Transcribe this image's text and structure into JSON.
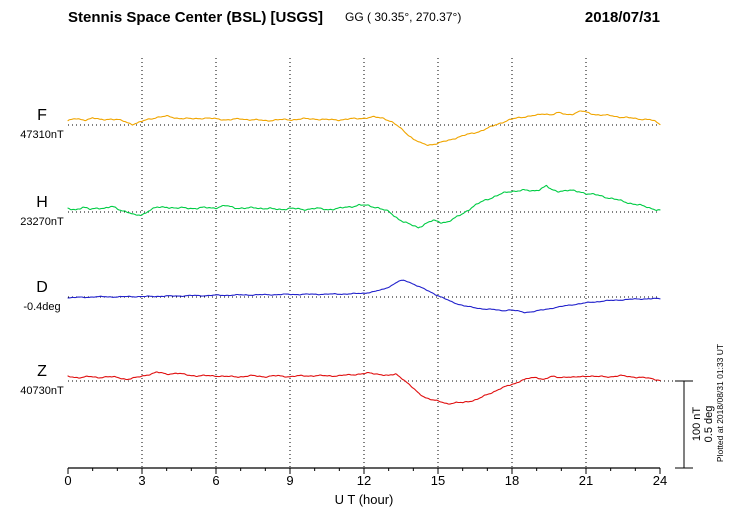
{
  "header": {
    "title": "Stennis Space Center (BSL)  [USGS]",
    "coordinates": "GG ( 30.35°, 270.37°)",
    "date": "2018/07/31"
  },
  "footer": {
    "xaxis_label": "U T (hour)"
  },
  "scale_bar": {
    "nt": "100 nT",
    "deg": "0.5 deg"
  },
  "plotted_note": "Plotted at 2018/08/31 01:33 UT",
  "chart_data": {
    "type": "line",
    "title": "Stennis Space Center (BSL) [USGS] magnetogram",
    "xlabel": "U T (hour)",
    "x_range": [
      0,
      24
    ],
    "x_ticks": [
      0,
      3,
      6,
      9,
      12,
      15,
      18,
      21,
      24
    ],
    "x_minor_step": 1,
    "grid": "dotted",
    "scale": {
      "nT_per_div": 100,
      "deg_per_div": 0.5
    },
    "series": [
      {
        "name": "F",
        "unit": "nT",
        "baseline": 47310,
        "baseline_label": "47310nT",
        "color": "#f0a500",
        "offsets": [
          [
            0,
            5
          ],
          [
            0.3,
            7
          ],
          [
            0.7,
            6
          ],
          [
            1,
            8
          ],
          [
            1.3,
            6
          ],
          [
            1.7,
            7
          ],
          [
            2,
            6
          ],
          [
            2.3,
            4
          ],
          [
            2.6,
            1
          ],
          [
            2.9,
            3
          ],
          [
            3.2,
            6
          ],
          [
            3.6,
            9
          ],
          [
            4,
            10
          ],
          [
            4.4,
            8
          ],
          [
            5,
            7
          ],
          [
            5.5,
            8
          ],
          [
            6,
            7
          ],
          [
            6.5,
            6
          ],
          [
            7,
            7
          ],
          [
            7.5,
            6
          ],
          [
            8,
            5
          ],
          [
            8.5,
            6
          ],
          [
            9,
            6
          ],
          [
            9.5,
            7
          ],
          [
            10,
            7
          ],
          [
            10.5,
            6
          ],
          [
            11,
            6
          ],
          [
            11.5,
            7
          ],
          [
            12,
            8
          ],
          [
            12.4,
            9
          ],
          [
            12.8,
            8
          ],
          [
            13.1,
            4
          ],
          [
            13.4,
            -2
          ],
          [
            13.7,
            -9
          ],
          [
            14,
            -16
          ],
          [
            14.3,
            -21
          ],
          [
            14.6,
            -23
          ],
          [
            15,
            -21
          ],
          [
            15.4,
            -18
          ],
          [
            15.8,
            -14
          ],
          [
            16.2,
            -11
          ],
          [
            16.6,
            -8
          ],
          [
            17,
            -4
          ],
          [
            17.4,
            1
          ],
          [
            17.8,
            5
          ],
          [
            18.2,
            8
          ],
          [
            18.6,
            10
          ],
          [
            19,
            11
          ],
          [
            19.3,
            13
          ],
          [
            19.6,
            12
          ],
          [
            19.9,
            14
          ],
          [
            20.2,
            12
          ],
          [
            20.5,
            13
          ],
          [
            20.8,
            16
          ],
          [
            21.1,
            14
          ],
          [
            21.4,
            12
          ],
          [
            21.7,
            11
          ],
          [
            22,
            11
          ],
          [
            22.4,
            9
          ],
          [
            22.8,
            8
          ],
          [
            23.2,
            7
          ],
          [
            23.6,
            6
          ],
          [
            23.8,
            4
          ],
          [
            24,
            1
          ]
        ]
      },
      {
        "name": "H",
        "unit": "nT",
        "baseline": 23270,
        "baseline_label": "23270nT",
        "color": "#00cc44",
        "offsets": [
          [
            0,
            4
          ],
          [
            0.3,
            3
          ],
          [
            0.6,
            5
          ],
          [
            0.9,
            3
          ],
          [
            1.2,
            5
          ],
          [
            1.5,
            4
          ],
          [
            1.8,
            6
          ],
          [
            2.1,
            3
          ],
          [
            2.4,
            0
          ],
          [
            2.7,
            -4
          ],
          [
            3,
            -3
          ],
          [
            3.3,
            2
          ],
          [
            3.6,
            5
          ],
          [
            4,
            6
          ],
          [
            4.4,
            4
          ],
          [
            4.8,
            5
          ],
          [
            5.2,
            4
          ],
          [
            5.6,
            5
          ],
          [
            6,
            5
          ],
          [
            6.4,
            7
          ],
          [
            6.8,
            5
          ],
          [
            7.2,
            4
          ],
          [
            7.6,
            5
          ],
          [
            8,
            4
          ],
          [
            8.5,
            3
          ],
          [
            9,
            4
          ],
          [
            9.5,
            3
          ],
          [
            10,
            4
          ],
          [
            10.5,
            3
          ],
          [
            11,
            4
          ],
          [
            11.4,
            6
          ],
          [
            11.8,
            8
          ],
          [
            12.2,
            7
          ],
          [
            12.6,
            5
          ],
          [
            13,
            0
          ],
          [
            13.3,
            -6
          ],
          [
            13.6,
            -11
          ],
          [
            13.9,
            -15
          ],
          [
            14.2,
            -18
          ],
          [
            14.5,
            -13
          ],
          [
            14.8,
            -10
          ],
          [
            15.1,
            -12
          ],
          [
            15.4,
            -11
          ],
          [
            15.7,
            -7
          ],
          [
            16,
            -2
          ],
          [
            16.4,
            6
          ],
          [
            16.8,
            12
          ],
          [
            17.2,
            17
          ],
          [
            17.6,
            21
          ],
          [
            18,
            24
          ],
          [
            18.4,
            25
          ],
          [
            18.8,
            24
          ],
          [
            19.1,
            26
          ],
          [
            19.4,
            30
          ],
          [
            19.6,
            25
          ],
          [
            19.9,
            24
          ],
          [
            20.2,
            25
          ],
          [
            20.5,
            24
          ],
          [
            20.8,
            23
          ],
          [
            21.1,
            21
          ],
          [
            21.5,
            19
          ],
          [
            22,
            16
          ],
          [
            22.5,
            12
          ],
          [
            23,
            9
          ],
          [
            23.4,
            6
          ],
          [
            23.7,
            4
          ],
          [
            24,
            2
          ]
        ]
      },
      {
        "name": "D",
        "unit": "deg",
        "baseline": -0.4,
        "baseline_label": "-0.4deg",
        "color": "#2222cc",
        "offsets": [
          [
            0,
            -0.005
          ],
          [
            0.5,
            -0.002
          ],
          [
            1,
            0
          ],
          [
            1.5,
            0.002
          ],
          [
            2,
            0
          ],
          [
            2.5,
            0.003
          ],
          [
            3,
            0.002
          ],
          [
            3.5,
            0.004
          ],
          [
            4,
            0.005
          ],
          [
            4.5,
            0.006
          ],
          [
            5,
            0.008
          ],
          [
            5.5,
            0.008
          ],
          [
            6,
            0.01
          ],
          [
            6.5,
            0.01
          ],
          [
            7,
            0.012
          ],
          [
            7.5,
            0.012
          ],
          [
            8,
            0.013
          ],
          [
            8.5,
            0.014
          ],
          [
            9,
            0.015
          ],
          [
            9.5,
            0.015
          ],
          [
            10,
            0.016
          ],
          [
            10.5,
            0.016
          ],
          [
            11,
            0.017
          ],
          [
            11.5,
            0.018
          ],
          [
            12,
            0.022
          ],
          [
            12.4,
            0.03
          ],
          [
            12.8,
            0.045
          ],
          [
            13.1,
            0.065
          ],
          [
            13.4,
            0.09
          ],
          [
            13.6,
            0.095
          ],
          [
            13.8,
            0.088
          ],
          [
            14,
            0.075
          ],
          [
            14.3,
            0.055
          ],
          [
            14.6,
            0.035
          ],
          [
            14.9,
            0.015
          ],
          [
            15.2,
            -0.005
          ],
          [
            15.5,
            -0.025
          ],
          [
            15.8,
            -0.04
          ],
          [
            16.1,
            -0.052
          ],
          [
            16.4,
            -0.06
          ],
          [
            16.7,
            -0.066
          ],
          [
            17,
            -0.07
          ],
          [
            17.3,
            -0.073
          ],
          [
            17.6,
            -0.078
          ],
          [
            17.9,
            -0.074
          ],
          [
            18.2,
            -0.08
          ],
          [
            18.5,
            -0.088
          ],
          [
            18.8,
            -0.085
          ],
          [
            19.1,
            -0.078
          ],
          [
            19.4,
            -0.07
          ],
          [
            19.7,
            -0.062
          ],
          [
            20,
            -0.055
          ],
          [
            20.4,
            -0.045
          ],
          [
            20.8,
            -0.038
          ],
          [
            21.2,
            -0.03
          ],
          [
            21.6,
            -0.025
          ],
          [
            22,
            -0.02
          ],
          [
            22.5,
            -0.016
          ],
          [
            23,
            -0.012
          ],
          [
            23.5,
            -0.01
          ],
          [
            24,
            -0.01
          ]
        ]
      },
      {
        "name": "Z",
        "unit": "nT",
        "baseline": 40730,
        "baseline_label": "40730nT",
        "color": "#e01010",
        "offsets": [
          [
            0,
            5
          ],
          [
            0.4,
            4
          ],
          [
            0.8,
            5
          ],
          [
            1.2,
            4
          ],
          [
            1.6,
            5
          ],
          [
            2,
            4
          ],
          [
            2.4,
            2
          ],
          [
            2.8,
            4
          ],
          [
            3.2,
            7
          ],
          [
            3.6,
            10
          ],
          [
            4,
            8
          ],
          [
            4.4,
            9
          ],
          [
            4.8,
            7
          ],
          [
            5.2,
            6
          ],
          [
            5.6,
            6
          ],
          [
            6,
            6
          ],
          [
            6.5,
            5
          ],
          [
            7,
            5
          ],
          [
            7.5,
            6
          ],
          [
            8,
            5
          ],
          [
            8.5,
            6
          ],
          [
            9,
            5
          ],
          [
            9.5,
            6
          ],
          [
            10,
            6
          ],
          [
            10.5,
            6
          ],
          [
            11,
            6
          ],
          [
            11.4,
            7
          ],
          [
            11.8,
            8
          ],
          [
            12.2,
            9
          ],
          [
            12.6,
            8
          ],
          [
            13,
            6
          ],
          [
            13.3,
            8
          ],
          [
            13.6,
            2
          ],
          [
            13.9,
            -6
          ],
          [
            14.2,
            -14
          ],
          [
            14.5,
            -19
          ],
          [
            14.8,
            -22
          ],
          [
            15.1,
            -24
          ],
          [
            15.4,
            -26
          ],
          [
            15.7,
            -25
          ],
          [
            16,
            -25
          ],
          [
            16.3,
            -23
          ],
          [
            16.6,
            -21
          ],
          [
            16.9,
            -17
          ],
          [
            17.2,
            -13
          ],
          [
            17.5,
            -9
          ],
          [
            17.8,
            -6
          ],
          [
            18.1,
            -3
          ],
          [
            18.4,
            1
          ],
          [
            18.7,
            3
          ],
          [
            19,
            4
          ],
          [
            19.3,
            2
          ],
          [
            19.6,
            5
          ],
          [
            19.9,
            4
          ],
          [
            20.2,
            5
          ],
          [
            20.5,
            4
          ],
          [
            20.8,
            5
          ],
          [
            21.1,
            6
          ],
          [
            21.4,
            5
          ],
          [
            21.7,
            5
          ],
          [
            22,
            5
          ],
          [
            22.4,
            6
          ],
          [
            22.8,
            5
          ],
          [
            23.2,
            4
          ],
          [
            23.6,
            3
          ],
          [
            24,
            1
          ]
        ]
      }
    ]
  }
}
